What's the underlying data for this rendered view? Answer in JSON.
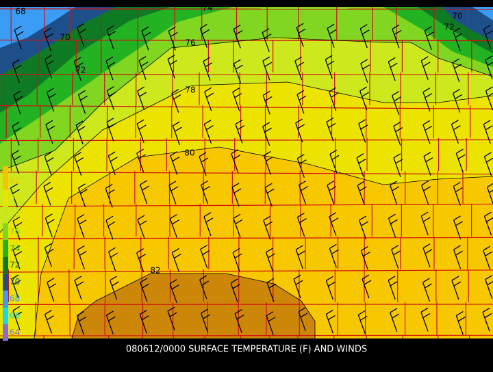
{
  "contour_labels": [
    68,
    70,
    72,
    74,
    76,
    78,
    80,
    82,
    70,
    72
  ],
  "legend": [
    {
      "label": 82,
      "color": "#f5c400"
    },
    {
      "label": 80,
      "color": "#e8e400"
    },
    {
      "label": 78,
      "color": "#c8e81a"
    },
    {
      "label": 76,
      "color": "#7ed61e"
    },
    {
      "label": 74,
      "color": "#1fb21f"
    },
    {
      "label": 72,
      "color": "#0c7a22"
    },
    {
      "label": 70,
      "color": "#1c4f8a"
    },
    {
      "label": 68,
      "color": "#3a9cf5"
    },
    {
      "label": 66,
      "color": "#16d8f0"
    },
    {
      "label": 64,
      "color": "#8a6ccc"
    }
  ],
  "footer": "080612/0000 SURFACE TEMPERATURE (F) AND WINDS"
}
